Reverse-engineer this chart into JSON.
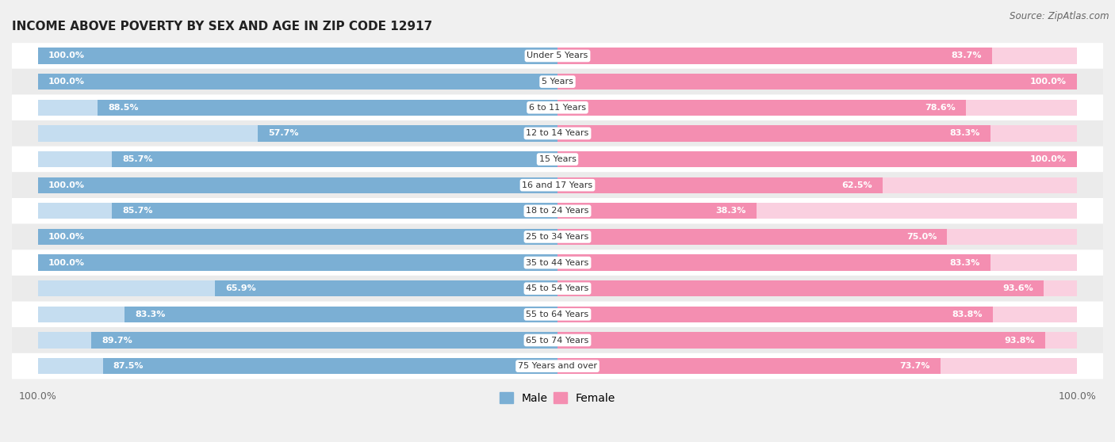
{
  "title": "INCOME ABOVE POVERTY BY SEX AND AGE IN ZIP CODE 12917",
  "source": "Source: ZipAtlas.com",
  "categories": [
    "Under 5 Years",
    "5 Years",
    "6 to 11 Years",
    "12 to 14 Years",
    "15 Years",
    "16 and 17 Years",
    "18 to 24 Years",
    "25 to 34 Years",
    "35 to 44 Years",
    "45 to 54 Years",
    "55 to 64 Years",
    "65 to 74 Years",
    "75 Years and over"
  ],
  "male_values": [
    100.0,
    100.0,
    88.5,
    57.7,
    85.7,
    100.0,
    85.7,
    100.0,
    100.0,
    65.9,
    83.3,
    89.7,
    87.5
  ],
  "female_values": [
    83.7,
    100.0,
    78.6,
    83.3,
    100.0,
    62.5,
    38.3,
    75.0,
    83.3,
    93.6,
    83.8,
    93.8,
    73.7
  ],
  "male_color": "#7bafd4",
  "female_color": "#f48eb1",
  "male_color_light": "#c5ddf0",
  "female_color_light": "#fad0e0",
  "male_label": "Male",
  "female_label": "Female",
  "background_color": "#f0f0f0",
  "row_color_even": "#ffffff",
  "row_color_odd": "#ebebeb",
  "title_fontsize": 11,
  "source_fontsize": 8.5,
  "label_fontsize": 8,
  "tick_fontsize": 9,
  "legend_fontsize": 10
}
